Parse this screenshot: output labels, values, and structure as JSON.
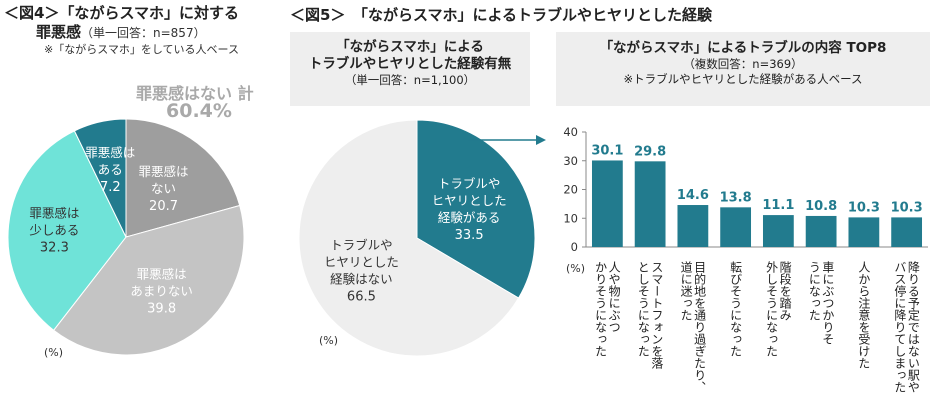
{
  "fig4": {
    "title_line1": "＜図4＞「ながらスマホ」に対する",
    "title_line2": "罪悪感",
    "answer_note": "（単一回答：n=857）",
    "base_note": "※「ながらスマホ」をしている人ベース",
    "summary_label": "罪悪感はない 計",
    "summary_value": "60.4%",
    "unit": "(%)"
  },
  "fig5": {
    "title": "＜図5＞　「ながらスマホ」によるトラブルやヒヤリとした経験",
    "left_box": {
      "line1": "「ながらスマホ」による",
      "line2": "トラブルやヒヤリとした経験有無",
      "line3": "（単一回答：n=1,100）"
    },
    "right_box": {
      "line1": "「ながらスマホ」によるトラブルの内容 TOP8",
      "line2": "（複数回答：n=369）",
      "line3": "※トラブルやヒヤリとした経験がある人ベース"
    },
    "unit_pie": "(%)",
    "unit_bar": "(%)"
  },
  "chart_data": [
    {
      "type": "pie",
      "title": "「ながらスマホ」に対する罪悪感",
      "slices": [
        {
          "label": "罪悪感は\nない",
          "value": 20.7,
          "value_text": "20.7",
          "color": "#9e9e9e",
          "text_color": "#ffffff"
        },
        {
          "label": "罪悪感は\nあまりない",
          "value": 39.8,
          "value_text": "39.8",
          "color": "#c4c4c4",
          "text_color": "#ffffff"
        },
        {
          "label": "罪悪感は\n少しある",
          "value": 32.3,
          "value_text": "32.3",
          "color": "#6fe3d8",
          "text_color": "#333333"
        },
        {
          "label": "罪悪感は\nある",
          "value": 7.2,
          "value_text": "7.2",
          "color": "#227b8e",
          "text_color": "#ffffff"
        }
      ]
    },
    {
      "type": "pie",
      "title": "「ながらスマホ」によるトラブルやヒヤリとした経験有無",
      "slices": [
        {
          "label": "トラブルや\nヒヤリとした\n経験がある",
          "value": 33.5,
          "value_text": "33.5",
          "color": "#227b8e",
          "text_color": "#ffffff"
        },
        {
          "label": "トラブルや\nヒヤリとした\n経験はない",
          "value": 66.5,
          "value_text": "66.5",
          "color": "#eeeeee",
          "text_color": "#333333"
        }
      ]
    },
    {
      "type": "bar",
      "title": "「ながらスマホ」によるトラブルの内容 TOP8",
      "categories": [
        "人や物にぶつかりそうになった",
        "スマートフォンを落としそうになった",
        "目的地を通り過ぎたり、道に迷った",
        "転びそうになった",
        "階段を踏み外しそうになった",
        "車にぶつかりそうになった",
        "人から注意を受けた",
        "降りる予定ではない駅やバス停に降りてしまった"
      ],
      "values": [
        30.1,
        29.8,
        14.6,
        13.8,
        11.1,
        10.8,
        10.3,
        10.3
      ],
      "value_labels": [
        "30.1",
        "29.8",
        "14.6",
        "13.8",
        "11.1",
        "10.8",
        "10.3",
        "10.3"
      ],
      "ylim": [
        0,
        40
      ],
      "yticks": [
        "0",
        "10",
        "20",
        "30",
        "40"
      ],
      "bar_color": "#227b8e",
      "label_color": "#227b8e",
      "grid": false
    }
  ]
}
